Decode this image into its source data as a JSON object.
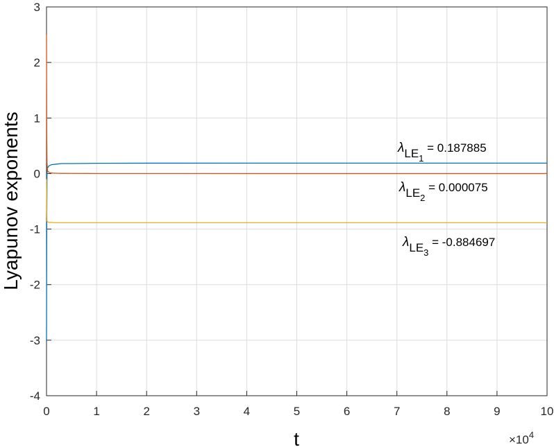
{
  "chart_data": {
    "type": "line",
    "x_label": "t",
    "y_label": "Lyapunov exponents",
    "x_multiplier": {
      "base": "×10",
      "exponent": "4"
    },
    "x": [
      0,
      0.005,
      0.01,
      0.02,
      0.05,
      0.1,
      0.2,
      0.3,
      0.5,
      1,
      2,
      5,
      10
    ],
    "series": [
      {
        "color": "#0072bd",
        "values": [
          -3.0,
          -1.0,
          0.0,
          0.1,
          0.14,
          0.16,
          0.17,
          0.18,
          0.18,
          0.185,
          0.187,
          0.188,
          0.188
        ]
      },
      {
        "color": "#d95319",
        "values": [
          2.5,
          0.8,
          0.2,
          0.05,
          0.02,
          0.01,
          0.005,
          0.003,
          0.002,
          0.001,
          0.0005,
          0.0001,
          0.0001
        ]
      },
      {
        "color": "#edb120",
        "values": [
          -0.1,
          -0.7,
          -0.85,
          -0.87,
          -0.88,
          -0.88,
          -0.885,
          -0.885,
          -0.885,
          -0.885,
          -0.885,
          -0.885,
          -0.885
        ]
      }
    ],
    "annotations": [
      {
        "symbol": "λ",
        "sub": "LE",
        "index": "1",
        "text": " = 0.187885"
      },
      {
        "symbol": "λ",
        "sub": "LE",
        "index": "2",
        "text": " = 0.000075"
      },
      {
        "symbol": "λ",
        "sub": "LE",
        "index": "3",
        "text": " = -0.884697"
      }
    ],
    "xlim": [
      0,
      10
    ],
    "xticks": [
      0,
      1,
      2,
      3,
      4,
      5,
      6,
      7,
      8,
      9,
      10
    ],
    "ylim": [
      -4,
      3
    ],
    "yticks": [
      -4,
      -3,
      -2,
      -1,
      0,
      1,
      2,
      3
    ],
    "grid": true
  }
}
